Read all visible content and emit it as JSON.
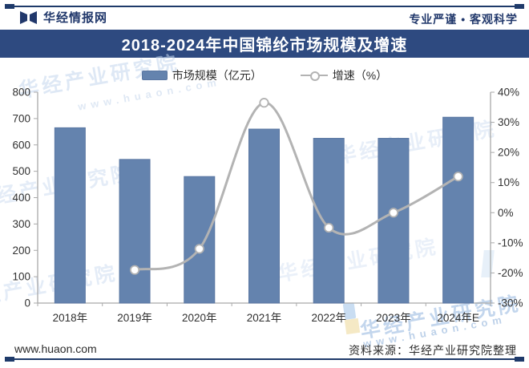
{
  "header": {
    "brand": "华经情报网",
    "slogan": "专业严谨 • 客观科学"
  },
  "title": "2018-2024年中国锦纶市场规模及增速",
  "chart_data": {
    "type": "bar+line",
    "title": "2018-2024年中国锦纶市场规模及增速",
    "categories": [
      "2018年",
      "2019年",
      "2020年",
      "2021年",
      "2022年",
      "2023年",
      "2024年E"
    ],
    "series": [
      {
        "name": "市场规模（亿元）",
        "type": "bar",
        "axis": "left",
        "values": [
          665,
          545,
          480,
          660,
          625,
          625,
          705
        ],
        "color": "#6483ae",
        "border_color": "#5a76a2"
      },
      {
        "name": "增速（%）",
        "type": "line",
        "axis": "right",
        "values": [
          null,
          -19,
          -12,
          36.5,
          -5,
          0,
          12
        ],
        "color": "#b3b3b3",
        "marker": "hollow-circle"
      }
    ],
    "left_axis": {
      "min": 0,
      "max": 800,
      "step": 100
    },
    "right_axis": {
      "min": -30,
      "max": 40,
      "step": 10,
      "suffix": "%"
    },
    "grid": false,
    "legend_position": "top"
  },
  "footer": {
    "website": "www.huaon.com",
    "source": "资料来源：华经产业研究院整理"
  },
  "watermark": {
    "text": "华经产业研究院",
    "url": "www.huaon.com"
  },
  "colors": {
    "accent_navy": "#2e4a80",
    "rule_navy": "#1e3a6a",
    "bar_fill": "#6483ae",
    "line_gray": "#b3b3b3",
    "axis_gray": "#a9a9a9",
    "watermark_blue": "#c4d7ee"
  }
}
